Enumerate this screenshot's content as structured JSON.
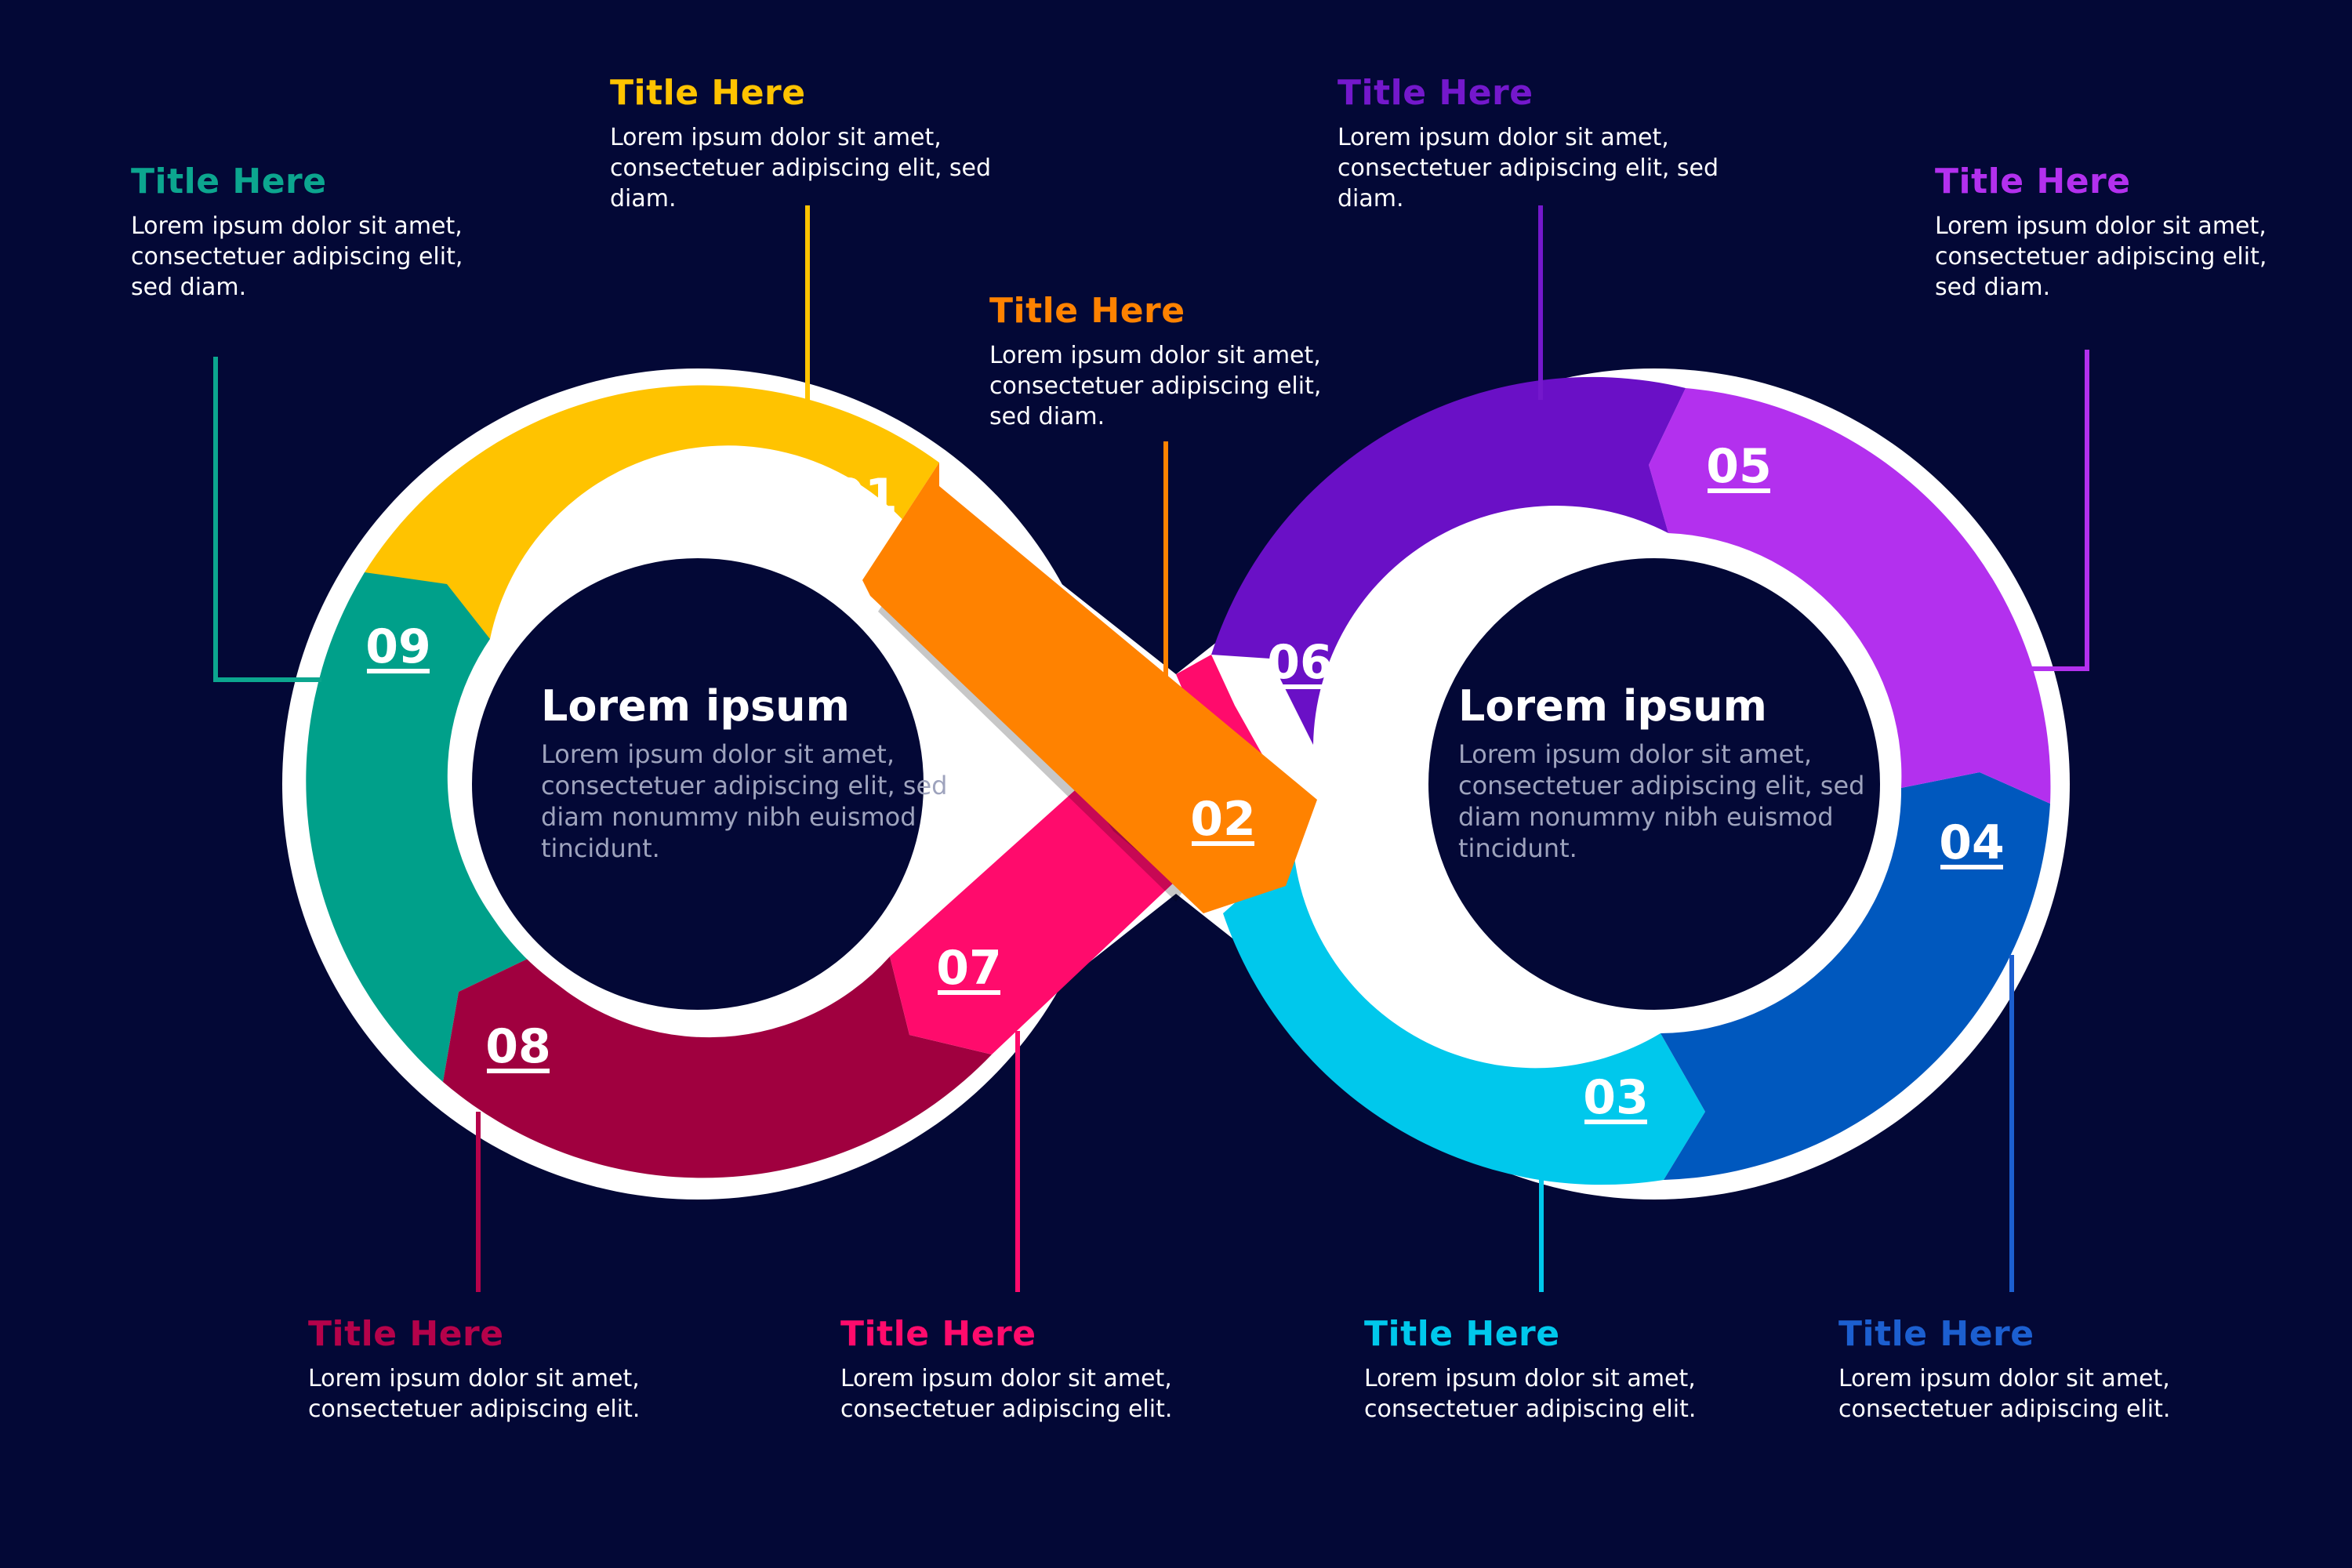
{
  "colors": {
    "background": "#030836",
    "outline": "#ffffff",
    "step_01": "#ffc300",
    "step_02": "#ff8200",
    "step_03": "#00c8ec",
    "step_04": "#0058be",
    "step_05": "#b330ee",
    "step_06": "#6a10c6",
    "step_07": "#ff0b6c",
    "step_08": "#a0003f",
    "step_09": "#00a08a"
  },
  "steps": [
    {
      "number": "01",
      "title": "Title Here",
      "text": "Lorem ipsum dolor sit amet, consectetuer adipiscing elit, sed diam.",
      "color": "#ffc300"
    },
    {
      "number": "02",
      "title": "Title Here",
      "text": "Lorem ipsum dolor sit amet, consectetuer adipiscing elit, sed diam.",
      "color": "#ff8200"
    },
    {
      "number": "03",
      "title": "Title Here",
      "text": "Lorem ipsum dolor sit amet, consectetuer adipiscing elit.",
      "color": "#00c8ec"
    },
    {
      "number": "04",
      "title": "Title Here",
      "text": "Lorem ipsum dolor sit amet, consectetuer adipiscing elit.",
      "color": "#1c5fd0"
    },
    {
      "number": "05",
      "title": "Title Here",
      "text": "Lorem ipsum dolor sit amet, consectetuer adipiscing elit, sed diam.",
      "color": "#b330ee"
    },
    {
      "number": "06",
      "title": "Title Here",
      "text": "Lorem ipsum dolor sit amet, consectetuer adipiscing elit, sed diam.",
      "color": "#7418cc"
    },
    {
      "number": "07",
      "title": "Title Here",
      "text": "Lorem ipsum dolor sit amet, consectetuer adipiscing elit.",
      "color": "#ff0b6c"
    },
    {
      "number": "08",
      "title": "Title Here",
      "text": "Lorem ipsum dolor sit amet, consectetuer adipiscing elit.",
      "color": "#b5024a"
    },
    {
      "number": "09",
      "title": "Title Here",
      "text": "Lorem ipsum dolor sit amet, consectetuer adipiscing elit, sed diam.",
      "color": "#0ca68f"
    }
  ],
  "centers": {
    "left": {
      "heading": "Lorem ipsum",
      "body": "Lorem ipsum dolor sit amet, consectetuer adipiscing elit, sed diam nonummy nibh euismod tincidunt."
    },
    "right": {
      "heading": "Lorem ipsum",
      "body": "Lorem ipsum dolor sit amet, consectetuer adipiscing elit, sed diam nonummy nibh euismod tincidunt."
    }
  }
}
